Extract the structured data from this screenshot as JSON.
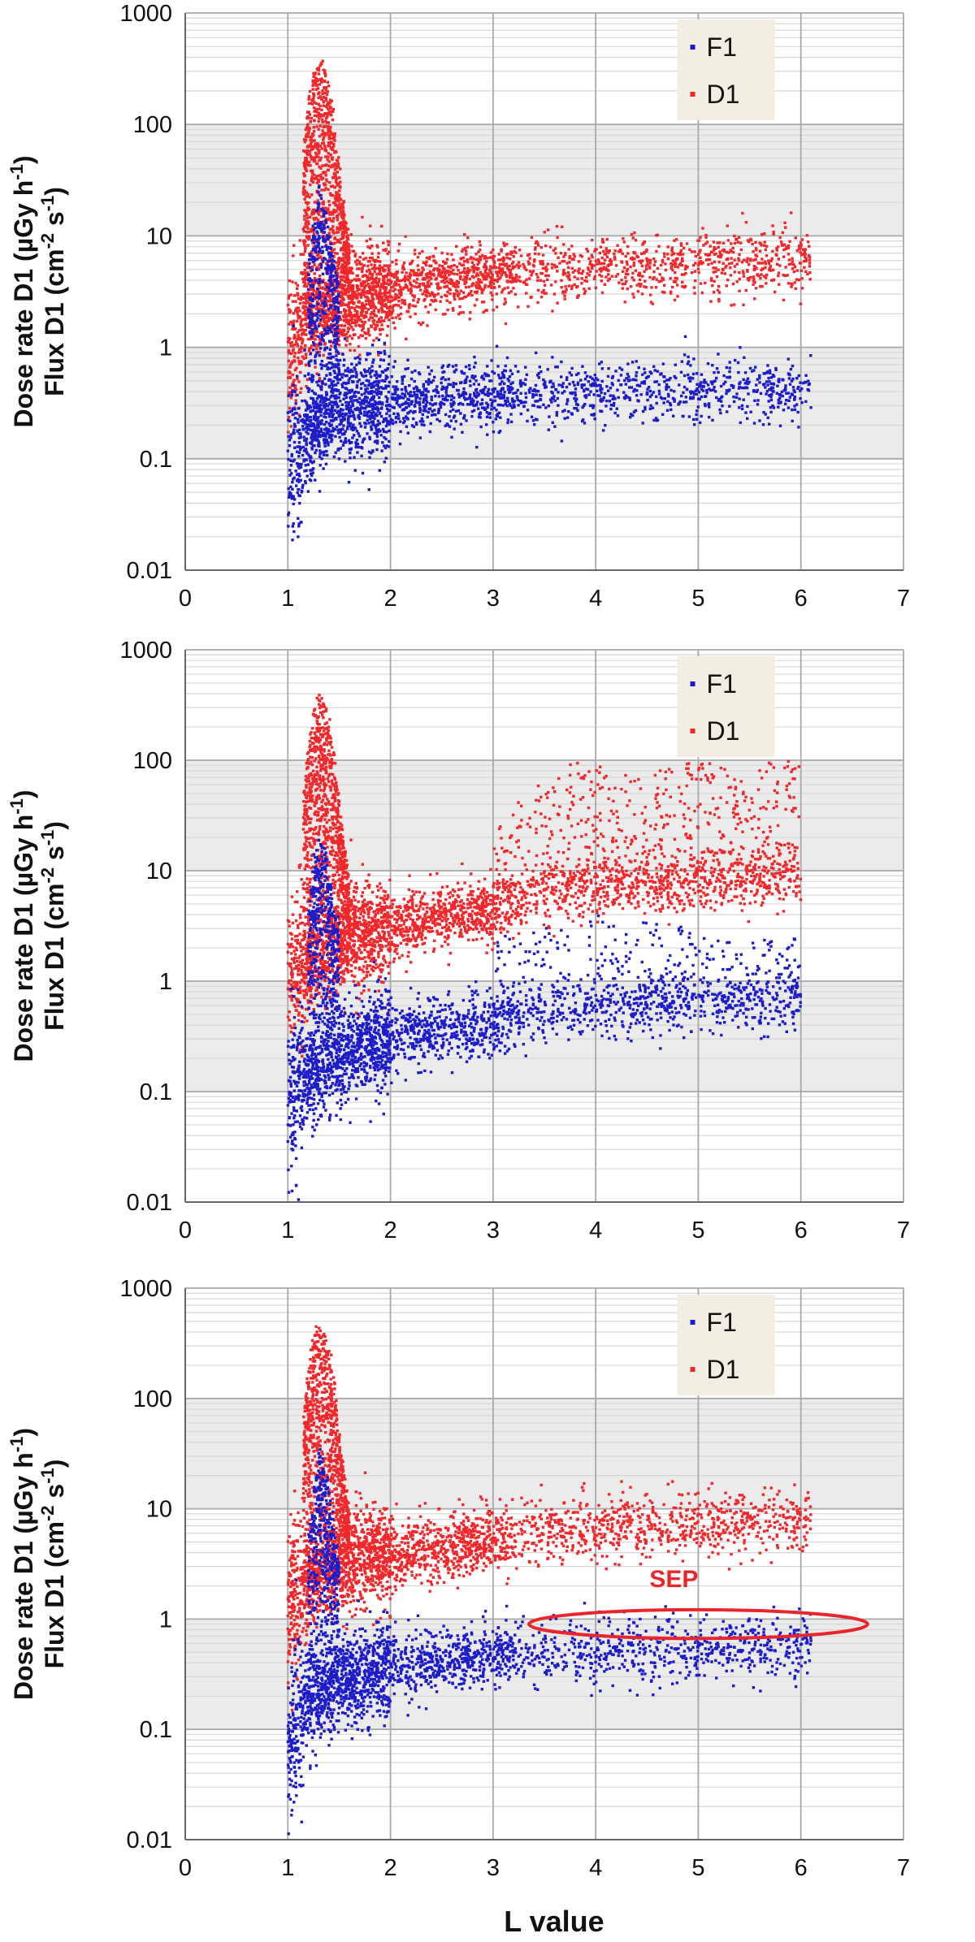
{
  "colors": {
    "F1": "#1c1cc8",
    "D1": "#f0282c",
    "grid_major": "#a8a8a8",
    "grid_minor": "#d6d6d6",
    "band": "#ebebeb",
    "legend_bg": "#f2ede2",
    "annotation": "#e8262b"
  },
  "x_axis_label": "L value",
  "chart_data": [
    {
      "type": "scatter",
      "xlim": [
        0,
        7
      ],
      "ylim": [
        0.01,
        1000
      ],
      "y_scale": "log",
      "x_ticks": [
        "0",
        "1",
        "2",
        "3",
        "4",
        "5",
        "6",
        "7"
      ],
      "y_ticks": [
        "0.01",
        "0.1",
        "1",
        "10",
        "100",
        "1000"
      ],
      "y_label_line1": "Dose rate D1 (µGy h",
      "y_label_line1_sup": "-1",
      "y_label_line1_end": ")",
      "y_label_line2": "Flux D1 (cm",
      "y_label_line2_sup1": "-2",
      "y_label_line2_mid": " s",
      "y_label_line2_sup2": "-1",
      "y_label_line2_end": ")",
      "legend": [
        "F1",
        "D1"
      ],
      "legend_position": "top-right",
      "grid": true,
      "series": [
        {
          "name": "F1",
          "color": "#1c1cc8",
          "x": [
            1.0,
            1.02,
            1.05,
            1.1,
            1.15,
            1.2,
            1.25,
            1.3,
            1.35,
            1.4,
            1.5,
            1.6,
            1.7,
            1.8,
            1.9,
            2.0,
            2.2,
            2.5,
            2.8,
            3.0,
            3.5,
            4.0,
            4.5,
            5.0,
            5.5,
            6.0,
            6.1
          ],
          "y": [
            0.06,
            0.08,
            0.1,
            0.12,
            0.14,
            0.16,
            0.18,
            0.2,
            0.22,
            0.24,
            0.26,
            0.28,
            0.3,
            0.31,
            0.32,
            0.33,
            0.34,
            0.35,
            0.36,
            0.37,
            0.39,
            0.4,
            0.41,
            0.41,
            0.42,
            0.43,
            0.43
          ],
          "peak_x": [
            1.2,
            1.25,
            1.3,
            1.35,
            1.4,
            1.45,
            1.5
          ],
          "peak_y": [
            5,
            12,
            25,
            20,
            12,
            6,
            3
          ]
        },
        {
          "name": "D1",
          "color": "#f0282c",
          "x": [
            1.0,
            1.02,
            1.05,
            1.1,
            1.15,
            1.2,
            1.3,
            1.5,
            1.7,
            1.8,
            2.0,
            2.2,
            2.5,
            2.8,
            3.0,
            3.5,
            4.0,
            4.5,
            5.0,
            5.5,
            6.0,
            6.1
          ],
          "y": [
            0.8,
            1.0,
            1.3,
            1.5,
            1.7,
            1.9,
            2.1,
            2.4,
            2.8,
            3.0,
            3.3,
            3.6,
            4.0,
            4.3,
            4.5,
            5.0,
            5.2,
            5.4,
            5.6,
            5.8,
            6.0,
            6.0
          ],
          "peak_x": [
            1.15,
            1.2,
            1.25,
            1.3,
            1.35,
            1.4,
            1.45,
            1.5,
            1.55,
            1.6
          ],
          "peak_y": [
            50,
            150,
            300,
            350,
            320,
            250,
            120,
            40,
            15,
            8
          ]
        }
      ]
    },
    {
      "type": "scatter",
      "xlim": [
        0,
        7
      ],
      "ylim": [
        0.01,
        1000
      ],
      "y_scale": "log",
      "x_ticks": [
        "0",
        "1",
        "2",
        "3",
        "4",
        "5",
        "6",
        "7"
      ],
      "y_ticks": [
        "0.01",
        "0.1",
        "1",
        "10",
        "100",
        "1000"
      ],
      "y_label_line1": "Dose rate D1 (µGy h",
      "y_label_line1_sup": "-1",
      "y_label_line1_end": ")",
      "y_label_line2": "Flux D1 (cm",
      "y_label_line2_sup1": "-2",
      "y_label_line2_mid": " s",
      "y_label_line2_sup2": "-1",
      "y_label_line2_end": ")",
      "legend": [
        "F1",
        "D1"
      ],
      "legend_position": "top-right",
      "grid": true,
      "series": [
        {
          "name": "F1",
          "color": "#1c1cc8",
          "x": [
            1.0,
            1.05,
            1.1,
            1.2,
            1.3,
            1.5,
            1.7,
            2.0,
            2.3,
            2.6,
            3.0,
            3.3,
            3.6,
            4.0,
            4.5,
            5.0,
            5.5,
            6.0
          ],
          "y": [
            0.07,
            0.09,
            0.12,
            0.15,
            0.18,
            0.22,
            0.26,
            0.3,
            0.34,
            0.38,
            0.43,
            0.48,
            0.55,
            0.6,
            0.62,
            0.64,
            0.66,
            0.68
          ],
          "peak_x": [
            1.2,
            1.25,
            1.3,
            1.35,
            1.4,
            1.45,
            1.5
          ],
          "peak_y": [
            4,
            10,
            20,
            18,
            10,
            5,
            3
          ],
          "upper_x": [
            3.0,
            3.5,
            4.0,
            4.5,
            5.0,
            5.5,
            6.0
          ],
          "upper_y": [
            2.5,
            3.0,
            4.0,
            3.5,
            3.0,
            2.5,
            2.5
          ]
        },
        {
          "name": "D1",
          "color": "#f0282c",
          "x": [
            1.0,
            1.05,
            1.1,
            1.2,
            1.3,
            1.5,
            1.7,
            2.0,
            2.3,
            2.6,
            3.0,
            3.3,
            3.6,
            4.0,
            4.5,
            5.0,
            5.5,
            6.0
          ],
          "y": [
            0.8,
            1.0,
            1.2,
            1.5,
            1.8,
            2.2,
            2.6,
            3.0,
            3.5,
            4.0,
            4.5,
            5.5,
            6.5,
            7.0,
            7.5,
            8.0,
            8.5,
            9.0
          ],
          "peak_x": [
            1.15,
            1.2,
            1.25,
            1.3,
            1.35,
            1.4,
            1.45,
            1.5,
            1.55,
            1.6
          ],
          "peak_y": [
            40,
            120,
            280,
            340,
            300,
            220,
            110,
            40,
            15,
            8
          ],
          "upper_x": [
            3.0,
            3.2,
            3.5,
            3.8,
            4.0,
            4.5,
            5.0,
            5.5,
            6.0
          ],
          "upper_y": [
            20,
            40,
            70,
            100,
            100,
            90,
            95,
            95,
            100
          ]
        }
      ]
    },
    {
      "type": "scatter",
      "xlim": [
        0,
        7
      ],
      "ylim": [
        0.01,
        1000
      ],
      "y_scale": "log",
      "x_ticks": [
        "0",
        "1",
        "2",
        "3",
        "4",
        "5",
        "6",
        "7"
      ],
      "y_ticks": [
        "0.01",
        "0.1",
        "1",
        "10",
        "100",
        "1000"
      ],
      "y_label_line1": "Dose rate D1 (µGy h",
      "y_label_line1_sup": "-1",
      "y_label_line1_end": ")",
      "y_label_line2": "Flux D1 (cm",
      "y_label_line2_sup1": "-2",
      "y_label_line2_mid": " s",
      "y_label_line2_sup2": "-1",
      "y_label_line2_end": ")",
      "legend": [
        "F1",
        "D1"
      ],
      "legend_position": "top-right",
      "grid": true,
      "annotation": {
        "text": "SEP",
        "x_center": 5.0,
        "y_center": 0.9,
        "x_halfwidth": 1.65,
        "y_factor": 1.35
      },
      "series": [
        {
          "name": "F1",
          "color": "#1c1cc8",
          "x": [
            1.0,
            1.02,
            1.05,
            1.1,
            1.15,
            1.2,
            1.3,
            1.5,
            1.7,
            2.0,
            2.3,
            2.6,
            3.0,
            3.5,
            4.0,
            4.5,
            5.0,
            5.5,
            6.0,
            6.1
          ],
          "y": [
            0.06,
            0.08,
            0.1,
            0.13,
            0.16,
            0.19,
            0.22,
            0.26,
            0.3,
            0.35,
            0.4,
            0.44,
            0.47,
            0.5,
            0.52,
            0.53,
            0.55,
            0.56,
            0.57,
            0.58
          ],
          "peak_x": [
            1.2,
            1.25,
            1.3,
            1.35,
            1.4,
            1.45,
            1.5
          ],
          "peak_y": [
            6,
            15,
            35,
            30,
            15,
            7,
            3
          ]
        },
        {
          "name": "D1",
          "color": "#f0282c",
          "x": [
            1.0,
            1.02,
            1.05,
            1.1,
            1.15,
            1.2,
            1.3,
            1.5,
            1.7,
            2.0,
            2.3,
            2.6,
            3.0,
            3.5,
            4.0,
            4.5,
            5.0,
            5.5,
            6.0,
            6.1
          ],
          "y": [
            0.9,
            1.1,
            1.4,
            1.7,
            2.0,
            2.3,
            2.6,
            3.0,
            3.4,
            3.8,
            4.3,
            4.8,
            5.3,
            6.0,
            6.5,
            7.0,
            7.2,
            7.5,
            8.0,
            8.0
          ],
          "peak_x": [
            1.15,
            1.2,
            1.25,
            1.3,
            1.35,
            1.4,
            1.45,
            1.5,
            1.55,
            1.6
          ],
          "peak_y": [
            60,
            180,
            380,
            450,
            400,
            300,
            150,
            50,
            18,
            9
          ]
        }
      ]
    }
  ]
}
